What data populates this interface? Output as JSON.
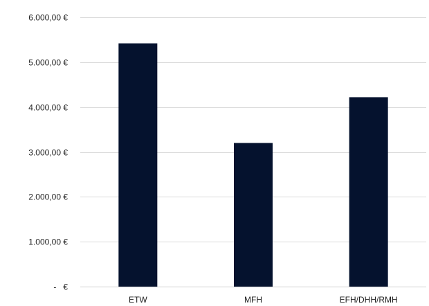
{
  "chart_data": {
    "type": "bar",
    "title": "",
    "xlabel": "",
    "ylabel": "",
    "categories": [
      "ETW",
      "MFH",
      "EFH/DHH/RMH"
    ],
    "values": [
      5420,
      3200,
      4220
    ],
    "ylim": [
      0,
      6000
    ],
    "yticks": [
      0,
      1000,
      2000,
      3000,
      4000,
      5000,
      6000
    ],
    "ytick_labels": [
      "-   €",
      "1.000,00 €",
      "2.000,00 €",
      "3.000,00 €",
      "4.000,00 €",
      "5.000,00 €",
      "6.000,00 €"
    ],
    "grid": true,
    "legend": "none",
    "bar_color": "#05122e",
    "grid_color": "#d9d9d9"
  }
}
